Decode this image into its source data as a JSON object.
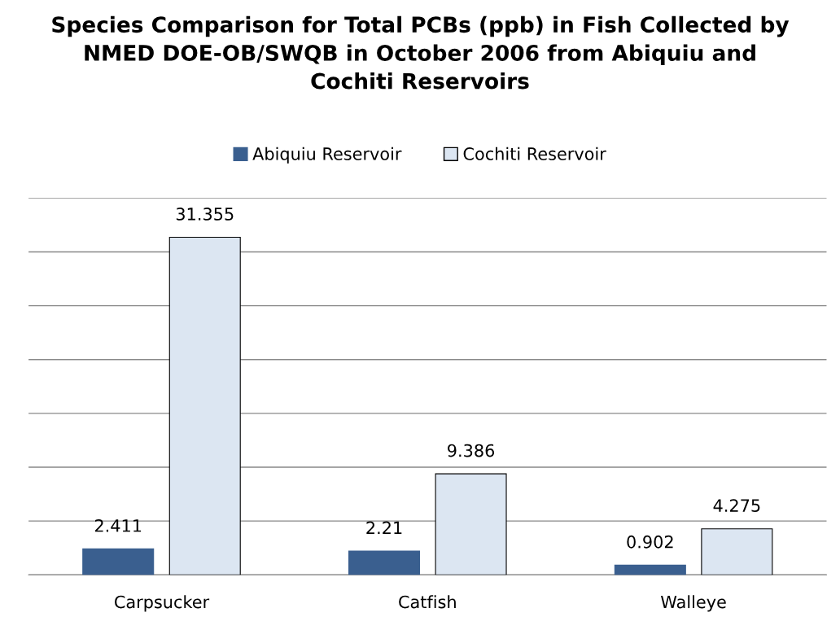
{
  "chart_data": {
    "type": "bar",
    "title": "Species Comparison for Total PCBs (ppb) in Fish Collected by\nNMED DOE-OB/SWQB in October 2006 from Abiquiu and\nCochiti Reservoirs",
    "categories": [
      "Carpsucker",
      "Catfish",
      "Walleye"
    ],
    "series": [
      {
        "name": "Abiquiu Reservoir",
        "color": "#3a5f8f",
        "values": [
          2.411,
          2.21,
          0.902
        ]
      },
      {
        "name": "Cochiti Reservoir",
        "color": "#dce6f2",
        "values": [
          31.355,
          9.386,
          4.275
        ]
      }
    ],
    "ylim": [
      0,
      35
    ],
    "yticks": [
      {
        "value": 0,
        "label": null
      },
      {
        "value": 5,
        "label": null
      },
      {
        "value": 10,
        "label": null
      },
      {
        "value": 15,
        "label": null
      },
      {
        "value": 20,
        "label": null
      },
      {
        "value": 25,
        "label": null
      },
      {
        "value": 30,
        "label": null
      },
      {
        "value": 35,
        "label": null
      }
    ],
    "tick_labels": "x",
    "grid": "y",
    "legend": "top",
    "data_labels": true
  }
}
